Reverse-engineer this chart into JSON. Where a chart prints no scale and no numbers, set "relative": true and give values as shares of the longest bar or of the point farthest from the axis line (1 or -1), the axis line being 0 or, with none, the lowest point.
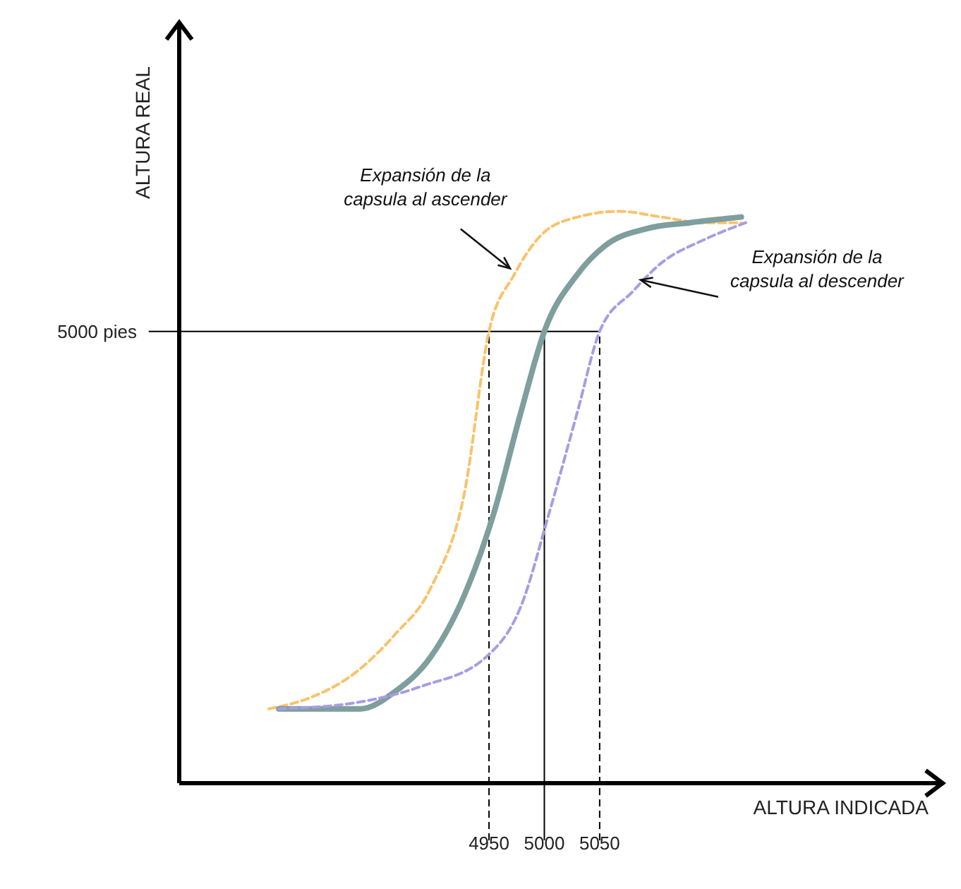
{
  "chart_data": {
    "type": "line",
    "relative": true,
    "xlabel": "ALTURA INDICADA",
    "ylabel": "ALTURA REAL",
    "xlim": [
      4670,
      5360
    ],
    "xticks": [
      4950,
      5000,
      5050
    ],
    "marker": "none",
    "series": [
      {
        "color": "#f9c36a",
        "line_style": "dashed",
        "x": [
          4751,
          4789,
          4827,
          4865,
          4897,
          4928,
          4950,
          4973,
          4998,
          5030,
          5068,
          5106,
          5144,
          5178
        ],
        "values": [
          0.13,
          0.15,
          0.19,
          0.26,
          0.34,
          0.51,
          0.79,
          0.89,
          0.96,
          0.99,
          1.0,
          0.99,
          0.98,
          0.98
        ]
      },
      {
        "color": "#7f9e9e",
        "line_style": "solid",
        "x": [
          4760,
          4802,
          4834,
          4865,
          4897,
          4928,
          4954,
          4979,
          5000,
          5030,
          5055,
          5093,
          5131,
          5178
        ],
        "values": [
          0.13,
          0.13,
          0.13,
          0.16,
          0.22,
          0.33,
          0.47,
          0.65,
          0.79,
          0.89,
          0.94,
          0.97,
          0.98,
          0.99
        ]
      },
      {
        "color": "#a79de3",
        "line_style": "dashed",
        "x": [
          4760,
          4827,
          4890,
          4947,
          4979,
          5004,
          5030,
          5050,
          5080,
          5106,
          5144,
          5182
        ],
        "values": [
          0.13,
          0.14,
          0.17,
          0.22,
          0.31,
          0.47,
          0.65,
          0.79,
          0.86,
          0.91,
          0.95,
          0.98
        ]
      }
    ],
    "ref_lines": [
      {
        "axis": "y",
        "value": 0.79,
        "label": "5000 pies",
        "color": "#000000",
        "line_style": "solid"
      },
      {
        "axis": "x",
        "value": 4950,
        "color": "#000000",
        "line_style": "dashed"
      },
      {
        "axis": "x",
        "value": 5000,
        "color": "#000000",
        "line_style": "solid"
      },
      {
        "axis": "x",
        "value": 5050,
        "color": "#000000",
        "line_style": "dashed"
      }
    ],
    "annotations": [
      {
        "text": "Expansión de la capsula al ascender",
        "x": 4969,
        "y": 0.9
      },
      {
        "text": "Expansión de la capsula al descender",
        "x": 5087,
        "y": 0.88
      }
    ]
  }
}
